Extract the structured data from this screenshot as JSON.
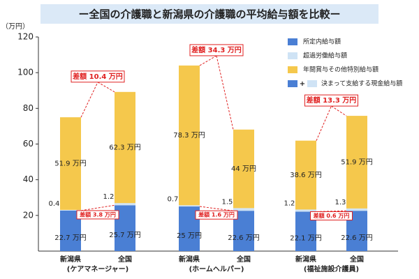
{
  "chart_data": {
    "type": "stacked_bar",
    "title": "ー全国の介護職と新潟県の介護職の平均給与額を比較ー",
    "y_unit": "（万円）",
    "categories": [
      "新潟県",
      "全国",
      "新潟県",
      "全国",
      "新潟県",
      "全国"
    ],
    "groups": [
      "(ケアマネージャー)",
      "(ホームヘルパー)",
      "(福祉施設介護員)"
    ],
    "series": [
      {
        "name": "所定内給与額",
        "color": "#4a7fd4",
        "values": [
          22.7,
          25.7,
          25,
          22.6,
          22.1,
          22.6
        ],
        "value_labels": [
          "22.7 万円",
          "25.7 万円",
          "25 万円",
          "22.6 万円",
          "22.1 万円",
          "22.6 万円"
        ]
      },
      {
        "name": "超過労働給与額",
        "color": "#cfe3f5",
        "values": [
          0.4,
          1.2,
          0.7,
          1.5,
          1.2,
          1.3
        ],
        "value_labels": [
          "0.4 万円",
          "1.2 万円",
          "0.7 万円",
          "1.5 万円",
          "1.2 万円",
          "1.3 万円"
        ]
      },
      {
        "name": "年間賞与その他特別給与額",
        "color": "#f5c84c",
        "values": [
          51.9,
          62.3,
          78.3,
          44,
          38.6,
          51.9
        ],
        "value_labels": [
          "51.9 万円",
          "62.3 万円",
          "78.3 万円",
          "44 万円",
          "38.6 万円",
          "51.9 万円"
        ]
      }
    ],
    "legend_extra": {
      "plus": "+",
      "label": "決まって支給する現金給与額"
    },
    "total_diffs": [
      "差額 10.4 万円",
      "差額 34.3 万円",
      "差額 13.3 万円"
    ],
    "base_diffs": [
      "差額 3.8 万円",
      "差額 1.6 万円",
      "差額 0.6 万円"
    ],
    "ylim": [
      0,
      120
    ],
    "yticks": [
      20,
      40,
      60,
      80,
      100,
      120
    ],
    "grid": false
  }
}
